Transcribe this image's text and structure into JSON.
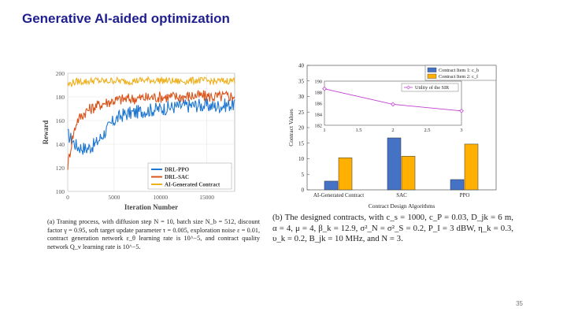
{
  "slide": {
    "title": "Generative AI-aided optimization",
    "page_number": "35"
  },
  "captions": {
    "a": "(a) Traning process, with diffusion step N = 10, batch size N_b = 512, discount factor γ = 0.95, soft target update parameter τ = 0.005, exploration noise ε = 0.01, contract generation network ε_θ learning rate is 10^−5, and contract quality network Q_v learning rate is 10^−5.",
    "b": "(b) The designed contracts, with c_s = 1000, c_P = 0.03, D_jk = 6 m, α = 4, μ = 4, β_k = 12.9, σ²_N = σ²_S = 0.2, P_I = 3 dBW, η_k = 0.3, υ_k = 0.2, B_jk = 10 MHz, and N = 3."
  },
  "chart_data": [
    {
      "type": "line",
      "xlabel": "Iteration Number",
      "ylabel": "Reward",
      "xlim": [
        0,
        18000
      ],
      "ylim": [
        100,
        200
      ],
      "x_ticks": [
        "0",
        "5000",
        "10000",
        "15000"
      ],
      "y_ticks": [
        "100",
        "120",
        "140",
        "160",
        "180",
        "200"
      ],
      "grid": true,
      "legend_position": "bottom-right",
      "series": [
        {
          "name": "DRL-PPO",
          "color": "#1f77d0",
          "x": [
            0,
            500,
            1000,
            2000,
            3000,
            4000,
            5000,
            6000,
            8000,
            10000,
            12000,
            14000,
            16000,
            18000
          ],
          "values": [
            148,
            143,
            138,
            136,
            140,
            150,
            160,
            165,
            168,
            170,
            172,
            173,
            172,
            174
          ]
        },
        {
          "name": "DRL-SAC",
          "color": "#d9541a",
          "x": [
            0,
            500,
            1000,
            2000,
            3000,
            4000,
            5000,
            6000,
            8000,
            10000,
            12000,
            14000,
            16000,
            18000
          ],
          "values": [
            122,
            145,
            160,
            168,
            172,
            175,
            177,
            178,
            179,
            180,
            180,
            181,
            180,
            181
          ]
        },
        {
          "name": "AI-Generated Contract",
          "color": "#edb120",
          "x": [
            0,
            500,
            1000,
            2000,
            3000,
            4000,
            5000,
            6000,
            8000,
            10000,
            12000,
            14000,
            16000,
            18000
          ],
          "values": [
            190,
            192,
            193,
            193,
            194,
            193,
            194,
            193,
            194,
            194,
            193,
            194,
            193,
            194
          ]
        }
      ]
    },
    {
      "type": "bar",
      "xlabel": "Contract Design Algorithms",
      "ylabel": "Contract Values",
      "categories": [
        "AI-Generated Contract",
        "SAC",
        "PPO"
      ],
      "ylim": [
        0,
        40
      ],
      "y_ticks": [
        "0",
        "5",
        "10",
        "15",
        "20",
        "25",
        "30",
        "35",
        "40"
      ],
      "legend_position": "top-right",
      "series": [
        {
          "name": "Contract Item 1: c_b",
          "color": "#4472c4",
          "values": [
            2.8,
            16.7,
            3.3
          ]
        },
        {
          "name": "Contract Item 2: c_f",
          "color": "#ffb000",
          "values": [
            10.3,
            10.8,
            14.7
          ]
        }
      ],
      "inset": {
        "type": "line",
        "xlim": [
          1,
          3
        ],
        "ylim": [
          182,
          190
        ],
        "x": [
          1,
          2,
          3
        ],
        "x_ticks": [
          "1",
          "1.5",
          "2",
          "2.5",
          "3"
        ],
        "y_ticks": [
          "182",
          "184",
          "186",
          "188",
          "190"
        ],
        "series": [
          {
            "name": "Utility of the SIR",
            "color": "#c040d0",
            "values": [
              188.6,
              185.8,
              184.6
            ]
          }
        ]
      }
    }
  ]
}
